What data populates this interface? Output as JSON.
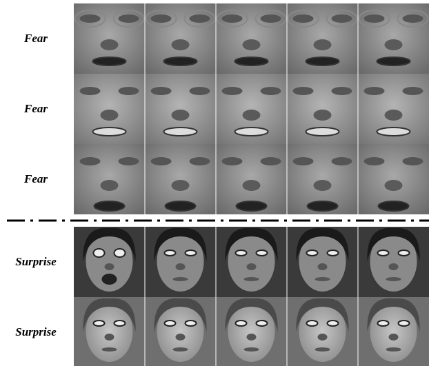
{
  "rows": [
    {
      "label": "Fear"
    },
    {
      "label": "Fear"
    },
    {
      "label": "Fear"
    },
    {
      "label": "Surprise"
    },
    {
      "label": "Surprise"
    }
  ]
}
